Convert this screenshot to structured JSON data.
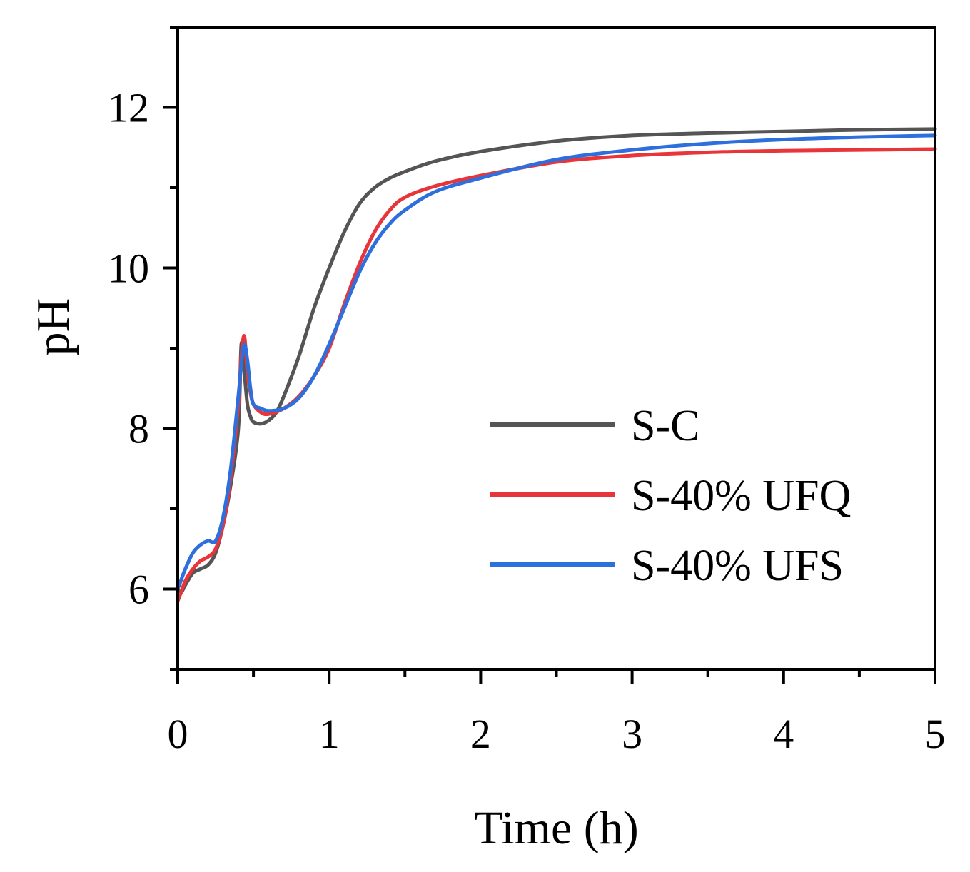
{
  "chart_data": {
    "type": "line",
    "title": "",
    "xlabel": "Time (h)",
    "ylabel": "pH",
    "xlim": [
      0,
      5
    ],
    "ylim": [
      5,
      13
    ],
    "xticks": [
      0,
      1,
      2,
      3,
      4,
      5
    ],
    "xtick_labels": [
      "0",
      "1",
      "2",
      "3",
      "4",
      "5"
    ],
    "yticks": [
      6,
      8,
      10,
      12
    ],
    "ytick_labels": [
      "6",
      "8",
      "10",
      "12"
    ],
    "grid": false,
    "legend_position": "bottom-right",
    "series": [
      {
        "name": "S-C",
        "color": "#555555",
        "x": [
          0,
          0.02,
          0.05,
          0.1,
          0.15,
          0.2,
          0.25,
          0.3,
          0.35,
          0.4,
          0.42,
          0.44,
          0.46,
          0.48,
          0.5,
          0.55,
          0.6,
          0.65,
          0.7,
          0.8,
          0.9,
          1.0,
          1.1,
          1.2,
          1.3,
          1.4,
          1.5,
          1.7,
          2.0,
          2.5,
          3.0,
          3.5,
          4.0,
          4.5,
          5.0
        ],
        "y": [
          6.0,
          5.95,
          6.05,
          6.2,
          6.25,
          6.3,
          6.45,
          6.8,
          7.3,
          8.0,
          9.05,
          8.7,
          8.3,
          8.15,
          8.08,
          8.06,
          8.1,
          8.2,
          8.4,
          8.9,
          9.5,
          10.0,
          10.45,
          10.8,
          11.0,
          11.12,
          11.2,
          11.33,
          11.45,
          11.58,
          11.65,
          11.68,
          11.7,
          11.72,
          11.73
        ]
      },
      {
        "name": "S-40% UFQ",
        "color": "#e8353a",
        "x": [
          0,
          0.02,
          0.05,
          0.1,
          0.15,
          0.2,
          0.25,
          0.3,
          0.35,
          0.4,
          0.42,
          0.44,
          0.46,
          0.48,
          0.5,
          0.55,
          0.6,
          0.7,
          0.8,
          0.9,
          1.0,
          1.1,
          1.2,
          1.3,
          1.4,
          1.5,
          1.7,
          2.0,
          2.5,
          3.0,
          3.5,
          4.0,
          4.5,
          5.0
        ],
        "y": [
          5.85,
          5.95,
          6.1,
          6.25,
          6.35,
          6.4,
          6.5,
          6.8,
          7.4,
          8.3,
          8.9,
          9.15,
          8.7,
          8.45,
          8.3,
          8.2,
          8.18,
          8.25,
          8.4,
          8.65,
          9.0,
          9.55,
          10.05,
          10.45,
          10.72,
          10.88,
          11.02,
          11.15,
          11.32,
          11.4,
          11.44,
          11.46,
          11.47,
          11.48
        ]
      },
      {
        "name": "S-40% UFS",
        "color": "#2e6fde",
        "x": [
          0,
          0.02,
          0.05,
          0.1,
          0.15,
          0.2,
          0.25,
          0.3,
          0.35,
          0.4,
          0.42,
          0.44,
          0.46,
          0.48,
          0.5,
          0.55,
          0.6,
          0.7,
          0.8,
          0.9,
          1.0,
          1.1,
          1.2,
          1.3,
          1.4,
          1.5,
          1.7,
          2.0,
          2.5,
          3.0,
          3.5,
          4.0,
          4.5,
          5.0
        ],
        "y": [
          6.0,
          6.1,
          6.25,
          6.45,
          6.55,
          6.6,
          6.6,
          6.9,
          7.5,
          8.4,
          8.8,
          9.05,
          8.85,
          8.5,
          8.3,
          8.25,
          8.22,
          8.25,
          8.38,
          8.65,
          9.05,
          9.5,
          9.95,
          10.3,
          10.55,
          10.72,
          10.95,
          11.12,
          11.35,
          11.47,
          11.55,
          11.6,
          11.63,
          11.65
        ]
      }
    ]
  }
}
